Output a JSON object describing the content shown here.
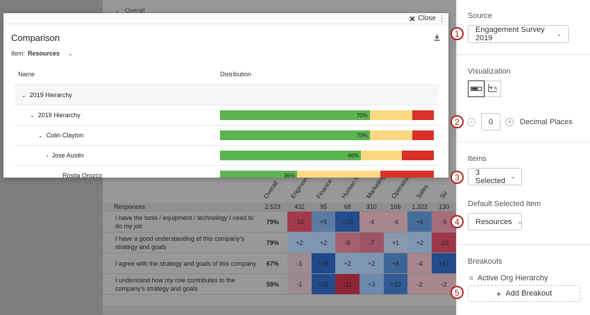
{
  "background": {
    "overall_label": "Overall",
    "columns": [
      "Overall",
      "Engineering",
      "Finance",
      "Human Re",
      "Marketing",
      "Operation",
      "Sales",
      "Su"
    ],
    "responses_label": "Responses",
    "responses": [
      "2,523",
      "432",
      "95",
      "68",
      "310",
      "166",
      "1,322",
      "130"
    ],
    "rows": [
      {
        "question": "I have the tools / equipment / technology I need to do my job",
        "overall": "79%",
        "cells": [
          "-16",
          "+5",
          "+10",
          "-4",
          "-4",
          "+6",
          "-5"
        ]
      },
      {
        "question": "I have a good understanding of this company's strategy and goals",
        "overall": "79%",
        "cells": [
          "+2",
          "+2",
          "-5",
          "-7",
          "+1",
          "+2",
          "-10"
        ]
      },
      {
        "question": "I agree with the strategy and goals of this company",
        "overall": "67%",
        "cells": [
          "-1",
          "+18",
          "+2",
          "+2",
          "+8",
          "-4",
          "+17"
        ]
      },
      {
        "question": "I understand how my role contributes to the company's strategy and goals",
        "overall": "59%",
        "cells": [
          "-1",
          "+15",
          "-11",
          "+3",
          "+10",
          "-2",
          "-2"
        ]
      }
    ],
    "cell_colors": [
      [
        "#a33a4a",
        "#5b7aa3",
        "#224c8c",
        "#a7868c",
        "#a7868c",
        "#456d9c",
        "#a56c79"
      ],
      [
        "#7f96b3",
        "#7f96b3",
        "#a3606f",
        "#9e5566",
        "#8a99ad",
        "#7f96b3",
        "#9e3747"
      ],
      [
        "#9c8a91",
        "#1e4a8a",
        "#7f96b3",
        "#7f96b3",
        "#3e6598",
        "#a7868c",
        "#224c8c"
      ],
      [
        "#9c8a91",
        "#224c8c",
        "#8e2535",
        "#6d89ad",
        "#2f5a93",
        "#a7868c",
        "#a7868c"
      ]
    ]
  },
  "modal": {
    "close_label": "Close",
    "title": "Comparison",
    "item_label": "Item:",
    "item_value": "Resources",
    "col_name": "Name",
    "col_distribution": "Distribution",
    "rows": [
      {
        "name": "2019 Hierarchy",
        "level": 0,
        "arrow": "down",
        "bar": null
      },
      {
        "name": "2019 Hierarchy",
        "level": 1,
        "arrow": "down",
        "bar": {
          "green": 70,
          "yellow": 20,
          "red": 10,
          "label": "70%"
        }
      },
      {
        "name": "Colin Clayton",
        "level": 2,
        "arrow": "down",
        "bar": {
          "green": 70,
          "yellow": 20,
          "red": 10,
          "label": "70%"
        }
      },
      {
        "name": "Jose Austin",
        "level": 3,
        "arrow": "right",
        "bar": {
          "green": 66,
          "yellow": 19,
          "red": 15,
          "label": "66%"
        }
      },
      {
        "name": "Rosita Orozco",
        "level": 4,
        "arrow": "none",
        "bar": {
          "green": 36,
          "yellow": 39,
          "red": 25,
          "label": "36%"
        }
      }
    ]
  },
  "panel": {
    "source_label": "Source",
    "source_value": "Engagement Survey 2019",
    "visualization_label": "Visualization",
    "decimal_value": "0",
    "decimal_label": "Decimal Places",
    "items_label": "Items",
    "items_value": "3 Selected",
    "default_item_label": "Default Selected Item",
    "default_item_value": "Resources",
    "breakouts_label": "Breakouts",
    "breakout_item": "Active Org Hierarchy",
    "add_breakout_label": "Add Breakout",
    "badges": [
      "1",
      "2",
      "3",
      "4",
      "5"
    ]
  }
}
